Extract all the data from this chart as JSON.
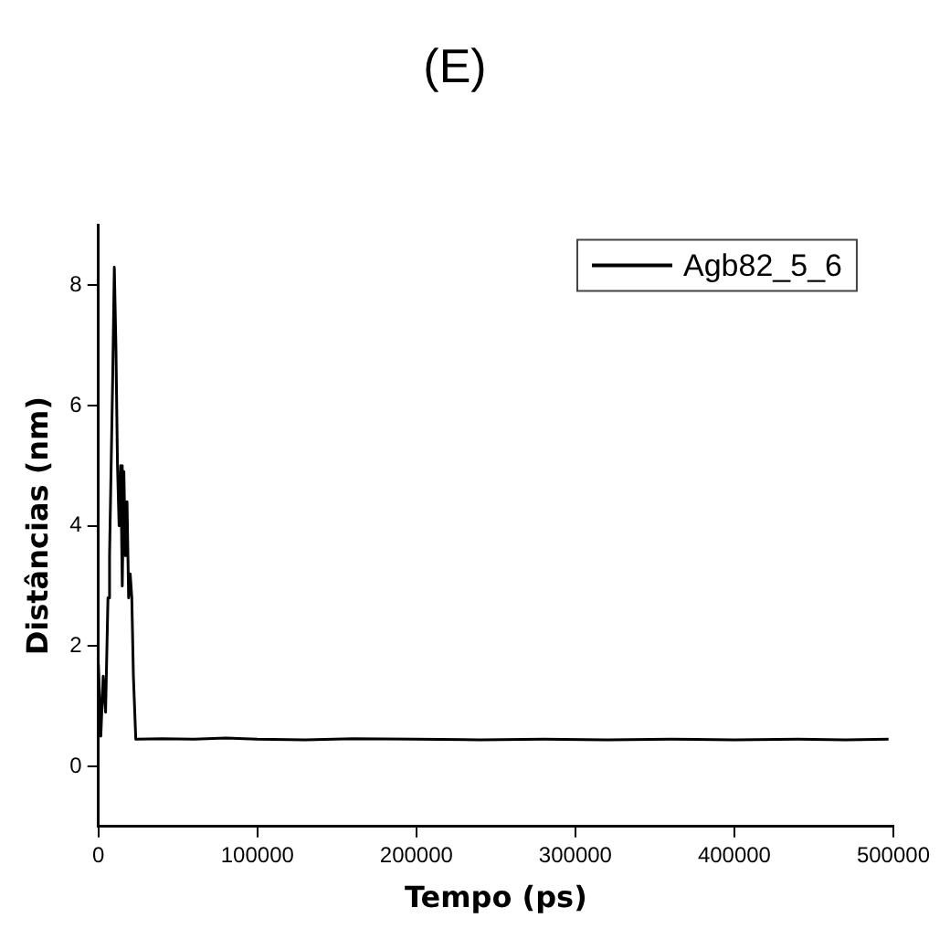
{
  "chart_data": {
    "type": "line",
    "title": "(E)",
    "xlabel": "Tempo (ps)",
    "ylabel": "Distâncias (nm)",
    "legend": "top right",
    "marker": "none",
    "line_style": "solid",
    "grid": false,
    "xlim": [
      0,
      500000
    ],
    "xticks": [
      0,
      100000,
      200000,
      300000,
      400000,
      500000
    ],
    "ylim": [
      -1,
      9
    ],
    "yticks": [
      0,
      2,
      4,
      6,
      8
    ],
    "series": [
      {
        "name": "Agb82_5_6",
        "color": "#000000",
        "x": [
          0,
          1500,
          3000,
          4500,
          6000,
          7000,
          8000,
          9000,
          10000,
          11000,
          12000,
          13000,
          14000,
          15000,
          16000,
          17000,
          18000,
          19000,
          20000,
          21000,
          22000,
          23500,
          40000,
          60000,
          80000,
          100000,
          130000,
          160000,
          200000,
          240000,
          280000,
          320000,
          360000,
          400000,
          440000,
          470000,
          497000
        ],
        "values": [
          1.7,
          0.5,
          1.5,
          0.9,
          2.8,
          3.5,
          5,
          6.5,
          8.3,
          7,
          5,
          4,
          5,
          3,
          4.9,
          3.5,
          4.4,
          2.8,
          3.2,
          2.8,
          1.5,
          0.45,
          0.46,
          0.45,
          0.47,
          0.45,
          0.44,
          0.46,
          0.45,
          0.44,
          0.45,
          0.44,
          0.45,
          0.44,
          0.45,
          0.44,
          0.45
        ]
      }
    ]
  }
}
